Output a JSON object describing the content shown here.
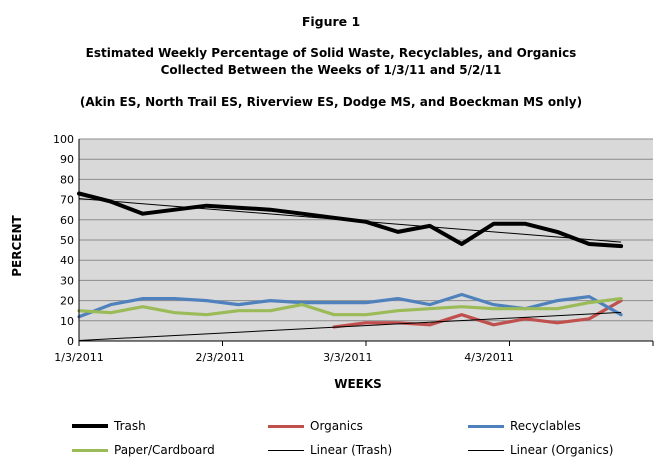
{
  "figure_label": "Figure 1",
  "title_line1": "Estimated Weekly Percentage of Solid Waste, Recyclables, and Organics",
  "title_line2": "Collected Between the Weeks of 1/3/11 and 5/2/11",
  "subtitle": "(Akin ES, North Trail ES, Riverview ES, Dodge MS, and Boeckman MS only)",
  "chart_data": {
    "type": "line",
    "xlabel": "WEEKS",
    "ylabel": "PERCENT",
    "ylim": [
      0,
      100
    ],
    "yticks": [
      0,
      10,
      20,
      30,
      40,
      50,
      60,
      70,
      80,
      90,
      100
    ],
    "xticks": [
      "1/3/2011",
      "2/3/2011",
      "3/3/2011",
      "4/3/2011"
    ],
    "grid": true,
    "legend_position": "bottom",
    "weeks": [
      "1/3/2011",
      "1/10/2011",
      "1/17/2011",
      "1/24/2011",
      "1/31/2011",
      "2/7/2011",
      "2/14/2011",
      "2/21/2011",
      "2/28/2011",
      "3/7/2011",
      "3/14/2011",
      "3/21/2011",
      "3/28/2011",
      "4/4/2011",
      "4/11/2011",
      "4/18/2011",
      "4/25/2011",
      "5/2/2011"
    ],
    "series": [
      {
        "name": "Trash",
        "color": "#000000",
        "values": [
          73,
          69,
          63,
          65,
          67,
          66,
          65,
          63,
          61,
          59,
          54,
          57,
          48,
          58,
          58,
          54,
          48,
          47
        ]
      },
      {
        "name": "Organics",
        "color": "#c0504d",
        "values": [
          null,
          null,
          null,
          null,
          null,
          null,
          null,
          null,
          7,
          9,
          9,
          8,
          13,
          8,
          11,
          9,
          11,
          20
        ]
      },
      {
        "name": "Recyclables",
        "color": "#4f81bd",
        "values": [
          12,
          18,
          21,
          21,
          20,
          18,
          20,
          19,
          19,
          19,
          21,
          18,
          23,
          18,
          16,
          20,
          22,
          13
        ]
      },
      {
        "name": "Paper/Cardboard",
        "color": "#9bbb59",
        "values": [
          15,
          14,
          17,
          14,
          13,
          15,
          15,
          18,
          13,
          13,
          15,
          16,
          17,
          16,
          16,
          16,
          19,
          21
        ]
      },
      {
        "name": "Linear (Trash)",
        "color": "#000000",
        "kind": "trendline",
        "of": "Trash"
      },
      {
        "name": "Linear (Organics)",
        "color": "#000000",
        "kind": "trendline",
        "of": "Organics"
      }
    ]
  }
}
